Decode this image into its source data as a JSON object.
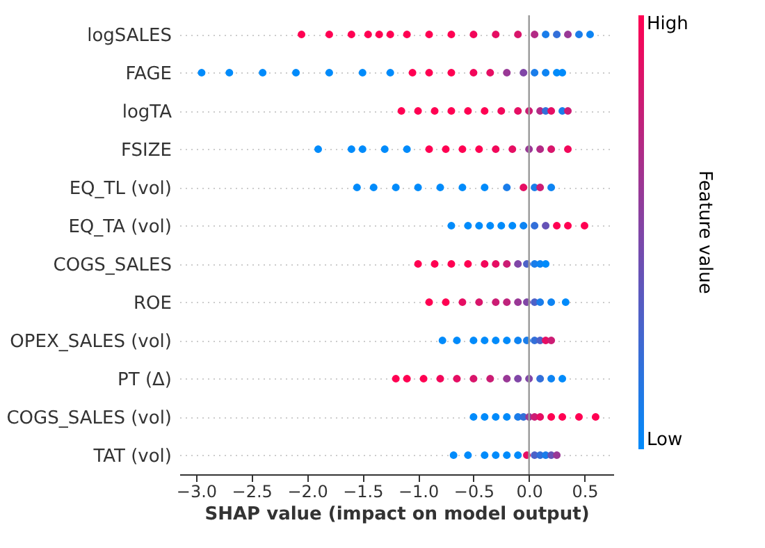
{
  "chart_data": {
    "type": "scatter",
    "orientation": "horizontal",
    "categories": [
      "logSALES",
      "FAGE",
      "logTA",
      "FSIZE",
      "EQ_TL (vol)",
      "EQ_TA (vol)",
      "COGS_SALES",
      "ROE",
      "OPEX_SALES (vol)",
      "PT (Δ)",
      "COGS_SALES (vol)",
      "TAT (vol)"
    ],
    "series": [
      {
        "x": [
          "logSALES",
          "logSALES",
          "logSALES",
          "logSALES",
          "logSALES",
          "logSALES",
          "logSALES",
          "logSALES",
          "logSALES",
          "logSALES",
          "logSALES",
          "logSALES",
          "logSALES",
          "logSALES",
          "logSALES",
          "logSALES",
          "logSALES",
          "logSALES",
          "FAGE",
          "FAGE",
          "FAGE",
          "FAGE",
          "FAGE",
          "FAGE",
          "FAGE",
          "FAGE",
          "FAGE",
          "FAGE",
          "FAGE",
          "FAGE",
          "FAGE",
          "FAGE",
          "FAGE",
          "FAGE",
          "FAGE",
          "FAGE",
          "logTA",
          "logTA",
          "logTA",
          "logTA",
          "logTA",
          "logTA",
          "logTA",
          "logTA",
          "logTA",
          "logTA",
          "logTA",
          "logTA",
          "logTA",
          "logTA",
          "FSIZE",
          "FSIZE",
          "FSIZE",
          "FSIZE",
          "FSIZE",
          "FSIZE",
          "FSIZE",
          "FSIZE",
          "FSIZE",
          "FSIZE",
          "FSIZE",
          "FSIZE",
          "FSIZE",
          "FSIZE",
          "FSIZE",
          "EQ_TL (vol)",
          "EQ_TL (vol)",
          "EQ_TL (vol)",
          "EQ_TL (vol)",
          "EQ_TL (vol)",
          "EQ_TL (vol)",
          "EQ_TL (vol)",
          "EQ_TL (vol)",
          "EQ_TL (vol)",
          "EQ_TL (vol)",
          "EQ_TL (vol)",
          "EQ_TL (vol)",
          "EQ_TA (vol)",
          "EQ_TA (vol)",
          "EQ_TA (vol)",
          "EQ_TA (vol)",
          "EQ_TA (vol)",
          "EQ_TA (vol)",
          "EQ_TA (vol)",
          "EQ_TA (vol)",
          "EQ_TA (vol)",
          "EQ_TA (vol)",
          "EQ_TA (vol)",
          "EQ_TA (vol)",
          "COGS_SALES",
          "COGS_SALES",
          "COGS_SALES",
          "COGS_SALES",
          "COGS_SALES",
          "COGS_SALES",
          "COGS_SALES",
          "COGS_SALES",
          "COGS_SALES",
          "COGS_SALES",
          "COGS_SALES",
          "COGS_SALES",
          "ROE",
          "ROE",
          "ROE",
          "ROE",
          "ROE",
          "ROE",
          "ROE",
          "ROE",
          "ROE",
          "ROE",
          "ROE",
          "ROE",
          "OPEX_SALES (vol)",
          "OPEX_SALES (vol)",
          "OPEX_SALES (vol)",
          "OPEX_SALES (vol)",
          "OPEX_SALES (vol)",
          "OPEX_SALES (vol)",
          "OPEX_SALES (vol)",
          "OPEX_SALES (vol)",
          "OPEX_SALES (vol)",
          "OPEX_SALES (vol)",
          "OPEX_SALES (vol)",
          "OPEX_SALES (vol)",
          "PT (Δ)",
          "PT (Δ)",
          "PT (Δ)",
          "PT (Δ)",
          "PT (Δ)",
          "PT (Δ)",
          "PT (Δ)",
          "PT (Δ)",
          "PT (Δ)",
          "PT (Δ)",
          "PT (Δ)",
          "PT (Δ)",
          "PT (Δ)",
          "COGS_SALES (vol)",
          "COGS_SALES (vol)",
          "COGS_SALES (vol)",
          "COGS_SALES (vol)",
          "COGS_SALES (vol)",
          "COGS_SALES (vol)",
          "COGS_SALES (vol)",
          "COGS_SALES (vol)",
          "COGS_SALES (vol)",
          "COGS_SALES (vol)",
          "COGS_SALES (vol)",
          "COGS_SALES (vol)",
          "COGS_SALES (vol)",
          "TAT (vol)",
          "TAT (vol)",
          "TAT (vol)",
          "TAT (vol)",
          "TAT (vol)",
          "TAT (vol)",
          "TAT (vol)",
          "TAT (vol)",
          "TAT (vol)",
          "TAT (vol)",
          "TAT (vol)",
          "TAT (vol)"
        ],
        "values": [
          -2.05,
          -1.8,
          -1.6,
          -1.45,
          -1.35,
          -1.25,
          -1.1,
          -0.9,
          -0.7,
          -0.5,
          -0.3,
          -0.1,
          0.05,
          0.15,
          0.25,
          0.35,
          0.45,
          0.55,
          -2.95,
          -2.7,
          -2.4,
          -2.1,
          -1.8,
          -1.5,
          -1.25,
          -1.05,
          -0.9,
          -0.7,
          -0.5,
          -0.35,
          -0.2,
          -0.05,
          0.05,
          0.15,
          0.25,
          0.3,
          -1.15,
          -1.0,
          -0.85,
          -0.7,
          -0.55,
          -0.4,
          -0.25,
          -0.1,
          0.0,
          0.1,
          0.15,
          0.2,
          0.3,
          0.35,
          -1.9,
          -1.6,
          -1.5,
          -1.3,
          -1.1,
          -0.9,
          -0.75,
          -0.6,
          -0.45,
          -0.3,
          -0.15,
          0.0,
          0.1,
          0.2,
          0.35,
          -1.55,
          -1.4,
          -1.2,
          -1.0,
          -0.8,
          -0.6,
          -0.4,
          -0.2,
          -0.05,
          0.05,
          0.1,
          0.2,
          -0.7,
          -0.55,
          -0.45,
          -0.35,
          -0.25,
          -0.15,
          -0.05,
          0.05,
          0.15,
          0.25,
          0.35,
          0.5,
          -1.0,
          -0.85,
          -0.7,
          -0.55,
          -0.4,
          -0.3,
          -0.2,
          -0.1,
          -0.02,
          0.05,
          0.1,
          0.15,
          -0.9,
          -0.75,
          -0.6,
          -0.45,
          -0.3,
          -0.2,
          -0.1,
          -0.02,
          0.05,
          0.1,
          0.2,
          0.33,
          -0.78,
          -0.65,
          -0.5,
          -0.4,
          -0.3,
          -0.2,
          -0.1,
          -0.02,
          0.05,
          0.1,
          0.15,
          0.2,
          -1.2,
          -1.1,
          -0.95,
          -0.8,
          -0.65,
          -0.5,
          -0.35,
          -0.2,
          -0.1,
          0.0,
          0.1,
          0.2,
          0.3,
          -0.5,
          -0.4,
          -0.3,
          -0.2,
          -0.1,
          -0.05,
          0.0,
          0.05,
          0.1,
          0.2,
          0.3,
          0.45,
          0.6,
          -0.68,
          -0.55,
          -0.4,
          -0.3,
          -0.2,
          -0.1,
          -0.02,
          0.05,
          0.1,
          0.15,
          0.2,
          0.25
        ],
        "cvalues": [
          1,
          1,
          1,
          1,
          1,
          1,
          1,
          1,
          1,
          0.95,
          0.9,
          0.85,
          0.7,
          0.1,
          0.2,
          0.6,
          0.1,
          0.05,
          0,
          0,
          0,
          0,
          0,
          0,
          0,
          1,
          1,
          1,
          0.95,
          0.9,
          0.6,
          0.5,
          0.1,
          0.05,
          0,
          0,
          1,
          1,
          1,
          1,
          1,
          1,
          0.95,
          0.9,
          0.8,
          0.7,
          0.2,
          0.9,
          0.1,
          0.8,
          0,
          0,
          0,
          0,
          0,
          1,
          1,
          1,
          1,
          0.95,
          0.9,
          0.6,
          0.7,
          0.85,
          0.95,
          0,
          0,
          0,
          0,
          0,
          0,
          0,
          0.1,
          0.9,
          0.1,
          0.8,
          0.05,
          0,
          0,
          0,
          0,
          0,
          0,
          0.05,
          0.2,
          0.4,
          1,
          1,
          1,
          1,
          1,
          1,
          1,
          0.95,
          0.9,
          0.8,
          0.5,
          0.3,
          0.1,
          0.05,
          0,
          1,
          1,
          0.9,
          0.85,
          0.8,
          0.75,
          0.6,
          0.5,
          0.3,
          0.1,
          0.05,
          0,
          0,
          0,
          0,
          0,
          0,
          0,
          0.05,
          0.1,
          0.2,
          0.3,
          0.9,
          0.8,
          1,
          1,
          1,
          0.95,
          0.9,
          0.85,
          0.8,
          0.6,
          0.5,
          0.5,
          0.2,
          0.05,
          0,
          0,
          0,
          0,
          0,
          0.1,
          0.2,
          0.6,
          0.8,
          0.9,
          1,
          1,
          1,
          1,
          0,
          0,
          0,
          0,
          0,
          0,
          0.9,
          0.3,
          0.2,
          0.1,
          0.4,
          0.6
        ]
      }
    ],
    "xlabel": "SHAP value (impact on model output)",
    "xlim": [
      -3.15,
      0.76
    ],
    "xticks": [
      {
        "value": -3,
        "label": "−3.0"
      },
      {
        "value": -2.5,
        "label": "−2.5"
      },
      {
        "value": -2,
        "label": "−2.0"
      },
      {
        "value": -1.5,
        "label": "−1.5"
      },
      {
        "value": -1,
        "label": "−1.0"
      },
      {
        "value": -0.5,
        "label": "−0.5"
      },
      {
        "value": 0,
        "label": "0.0"
      },
      {
        "value": 0.5,
        "label": "0.5"
      }
    ],
    "clabel": "Feature value",
    "cticks": [
      {
        "value": 0,
        "label": "Low"
      },
      {
        "value": 1,
        "label": "High"
      }
    ],
    "ref_lines": [
      {
        "axis": "x",
        "value": 0,
        "color": "#999999"
      }
    ],
    "grid": "y",
    "marker": "circle"
  }
}
